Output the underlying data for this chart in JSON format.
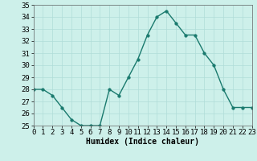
{
  "x": [
    0,
    1,
    2,
    3,
    4,
    5,
    6,
    7,
    8,
    9,
    10,
    11,
    12,
    13,
    14,
    15,
    16,
    17,
    18,
    19,
    20,
    21,
    22,
    23
  ],
  "y": [
    28,
    28,
    27.5,
    26.5,
    25.5,
    25,
    25,
    25,
    28,
    27.5,
    29,
    30.5,
    32.5,
    34,
    34.5,
    33.5,
    32.5,
    32.5,
    31,
    30,
    28,
    26.5,
    26.5,
    26.5
  ],
  "xlabel": "Humidex (Indice chaleur)",
  "ylim": [
    25,
    35
  ],
  "xlim": [
    0,
    23
  ],
  "yticks": [
    25,
    26,
    27,
    28,
    29,
    30,
    31,
    32,
    33,
    34,
    35
  ],
  "xticks": [
    0,
    1,
    2,
    3,
    4,
    5,
    6,
    7,
    8,
    9,
    10,
    11,
    12,
    13,
    14,
    15,
    16,
    17,
    18,
    19,
    20,
    21,
    22,
    23
  ],
  "line_color": "#1a7a6e",
  "bg_color": "#cdf0ea",
  "grid_color": "#b0ddd8",
  "marker_size": 2.5,
  "line_width": 1.0,
  "tick_fontsize": 6.5,
  "xlabel_fontsize": 7
}
